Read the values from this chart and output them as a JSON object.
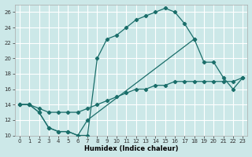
{
  "title": "",
  "xlabel": "Humidex (Indice chaleur)",
  "xlim": [
    -0.5,
    23.5
  ],
  "ylim": [
    10,
    27
  ],
  "xticks": [
    0,
    1,
    2,
    3,
    4,
    5,
    6,
    7,
    8,
    9,
    10,
    11,
    12,
    13,
    14,
    15,
    16,
    17,
    18,
    19,
    20,
    21,
    22,
    23
  ],
  "yticks": [
    10,
    12,
    14,
    16,
    18,
    20,
    22,
    24,
    26
  ],
  "bg_color": "#cce8e8",
  "grid_color": "#ffffff",
  "line_color": "#1a6e6a",
  "lines": [
    {
      "x": [
        0,
        1,
        2,
        3,
        4,
        5,
        6,
        7,
        8,
        9,
        10,
        11,
        12,
        13,
        14,
        15,
        16,
        17,
        18
      ],
      "y": [
        14,
        14,
        13,
        11,
        10.5,
        10.5,
        10,
        10,
        20,
        22.5,
        23,
        24,
        25,
        25.5,
        26,
        26.5,
        26,
        24.5,
        22.5
      ]
    },
    {
      "x": [
        0,
        1,
        2,
        3,
        4,
        5,
        6,
        7,
        18,
        19,
        20,
        21,
        22,
        23
      ],
      "y": [
        14,
        14,
        13,
        11,
        10.5,
        10.5,
        10,
        12,
        22.5,
        19.5,
        19.5,
        17.5,
        16,
        17.5
      ]
    },
    {
      "x": [
        0,
        1,
        2,
        3,
        4,
        5,
        6,
        7,
        8,
        9,
        10,
        11,
        12,
        13,
        14,
        15,
        16,
        17,
        18,
        19,
        20,
        21,
        22,
        23
      ],
      "y": [
        14,
        14,
        13.5,
        13,
        13,
        13,
        13,
        13.5,
        14,
        14.5,
        15,
        15.5,
        16,
        16,
        16.5,
        16.5,
        17,
        17,
        17,
        17,
        17,
        17,
        17,
        17.5
      ]
    }
  ]
}
